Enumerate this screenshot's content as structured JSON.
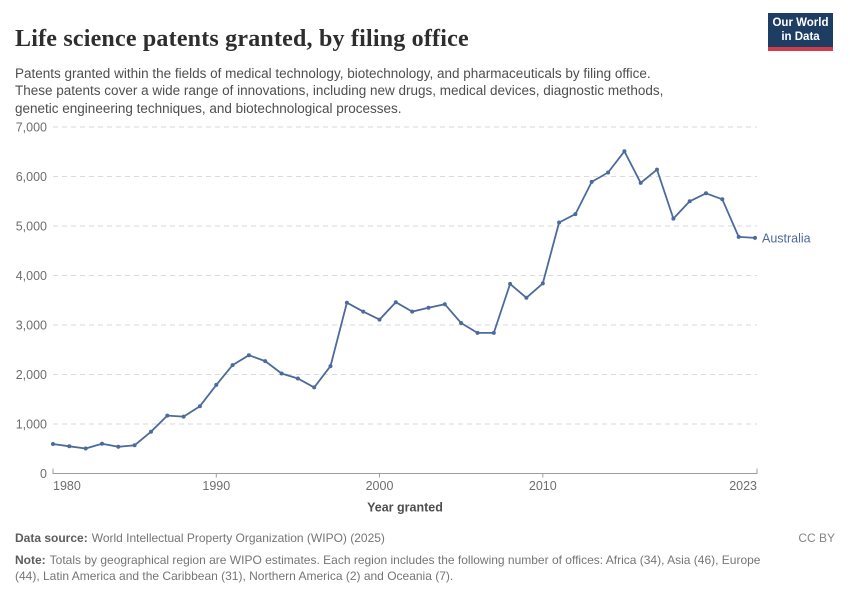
{
  "header": {
    "title": "Life science patents granted, by filing office",
    "subtitle_lines": [
      "Patents granted within the fields of medical technology, biotechnology, and pharmaceuticals by filing office.",
      "These patents cover a wide range of innovations, including new drugs, medical devices, diagnostic methods,",
      "genetic engineering techniques, and biotechnological processes."
    ],
    "logo": {
      "line1": "Our World",
      "line2": "in Data",
      "bg_color": "#1d3d63",
      "accent_color": "#d23c4b"
    }
  },
  "chart_data": {
    "type": "line",
    "title": "Life science patents granted, by filing office",
    "xlabel": "Year granted",
    "ylabel": "",
    "x": [
      1980,
      1981,
      1982,
      1983,
      1984,
      1985,
      1986,
      1987,
      1988,
      1989,
      1990,
      1991,
      1992,
      1993,
      1994,
      1995,
      1996,
      1997,
      1998,
      1999,
      2000,
      2001,
      2002,
      2003,
      2004,
      2005,
      2006,
      2007,
      2008,
      2009,
      2010,
      2011,
      2012,
      2013,
      2014,
      2015,
      2016,
      2017,
      2018,
      2019,
      2020,
      2021,
      2022,
      2023
    ],
    "series": [
      {
        "name": "Australia",
        "color": "#4c6a9c",
        "values": [
          595,
          550,
          505,
          600,
          540,
          570,
          845,
          1170,
          1150,
          1360,
          1790,
          2190,
          2390,
          2270,
          2020,
          1920,
          1740,
          2170,
          3450,
          3270,
          3110,
          3460,
          3270,
          3350,
          3420,
          3040,
          2840,
          2840,
          3830,
          3550,
          3840,
          5070,
          5240,
          5890,
          6080,
          6510,
          5870,
          6140,
          5150,
          5500,
          5660,
          5540,
          4780,
          4760
        ]
      }
    ],
    "ylim": [
      0,
      7000
    ],
    "yticks": [
      0,
      1000,
      2000,
      3000,
      4000,
      5000,
      6000,
      7000
    ],
    "ytick_labels": [
      "0",
      "1,000",
      "2,000",
      "3,000",
      "4,000",
      "5,000",
      "6,000",
      "7,000"
    ],
    "xticks": [
      1980,
      1990,
      2000,
      2010,
      2023
    ],
    "grid": "horizontal dashed",
    "legend": "line-end label",
    "grid_color": "#dadada",
    "axis_color": "#9e9e9e"
  },
  "footer": {
    "source_label": "Data source:",
    "source_text": "World Intellectual Property Organization (WIPO) (2025)",
    "license": "CC BY",
    "note_label": "Note:",
    "note_lines": [
      "Totals by geographical region are WIPO estimates. Each region includes the following number of offices: Africa (34), Asia (46), Europe",
      "(44), Latin America and the Caribbean (31), Northern America (2) and Oceania (7)."
    ]
  }
}
